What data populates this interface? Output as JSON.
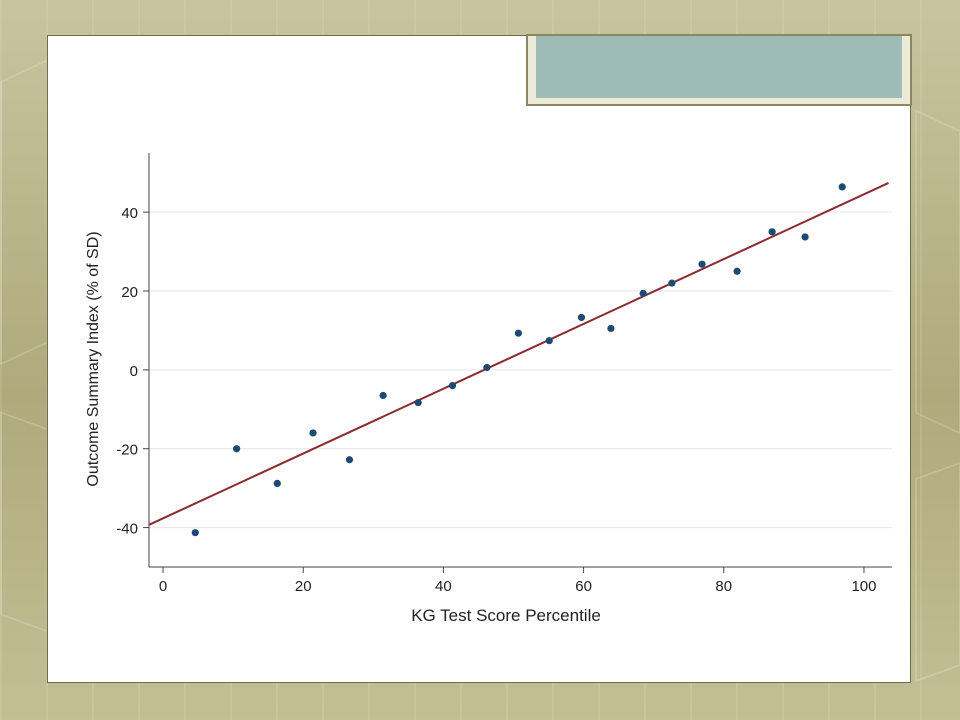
{
  "chart_data": {
    "type": "scatter",
    "title": "",
    "xlabel": "KG Test Score Percentile",
    "ylabel": "Outcome Summary Index (% of SD)",
    "xlim": [
      -2,
      104
    ],
    "ylim": [
      -50,
      55
    ],
    "xticks": [
      0,
      20,
      40,
      60,
      80,
      100
    ],
    "yticks": [
      -40,
      -20,
      0,
      20,
      40
    ],
    "xtick_labels": [
      "0",
      "20",
      "40",
      "60",
      "80",
      "100"
    ],
    "ytick_labels": [
      "-40",
      "-20",
      "0",
      "20",
      "40"
    ],
    "grid": "horizontal",
    "legend": "none",
    "points": [
      {
        "x": 4.6,
        "y": -41.3
      },
      {
        "x": 10.5,
        "y": -20.0
      },
      {
        "x": 16.3,
        "y": -28.8
      },
      {
        "x": 21.4,
        "y": -16.0
      },
      {
        "x": 26.6,
        "y": -22.8
      },
      {
        "x": 31.4,
        "y": -6.5
      },
      {
        "x": 36.4,
        "y": -8.3
      },
      {
        "x": 41.3,
        "y": -4.0
      },
      {
        "x": 46.2,
        "y": 0.6
      },
      {
        "x": 50.7,
        "y": 9.3
      },
      {
        "x": 55.1,
        "y": 7.4
      },
      {
        "x": 59.7,
        "y": 13.3
      },
      {
        "x": 63.9,
        "y": 10.5
      },
      {
        "x": 68.5,
        "y": 19.4
      },
      {
        "x": 72.6,
        "y": 22.0
      },
      {
        "x": 76.9,
        "y": 26.8
      },
      {
        "x": 81.9,
        "y": 25.0
      },
      {
        "x": 86.9,
        "y": 35.0
      },
      {
        "x": 91.6,
        "y": 33.7
      },
      {
        "x": 96.9,
        "y": 46.4
      }
    ],
    "fit_line": {
      "x": [
        -2,
        103.5
      ],
      "y": [
        -39.3,
        47.4
      ]
    },
    "colors": {
      "points": "#1d4a73",
      "fit_line": "#8b2a2f",
      "grid": "#e6e6e6",
      "axis": "#444444"
    }
  }
}
